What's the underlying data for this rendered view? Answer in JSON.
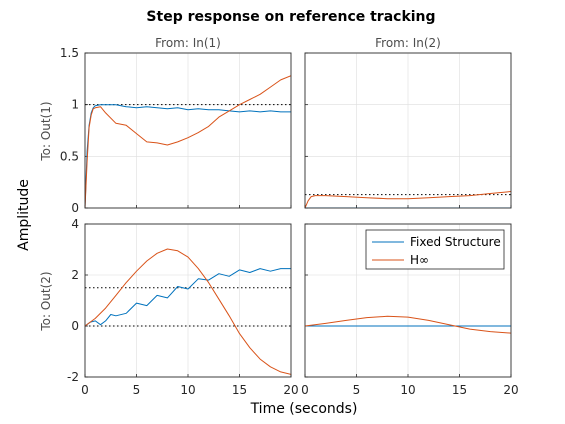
{
  "chart_data": {
    "type": "line",
    "title": "Step response on reference tracking",
    "xlabel": "Time (seconds)",
    "ylabel": "Amplitude",
    "grid": true,
    "legend": {
      "entries": [
        "Fixed Structure",
        "H∞"
      ],
      "placement": "top-right of bottom-right panel"
    },
    "colors": {
      "Fixed Structure": "#0072bd",
      "H∞": "#d95319"
    },
    "xlim": [
      0,
      20
    ],
    "xticks": [
      "0",
      "5",
      "10",
      "15",
      "20"
    ],
    "columns": [
      "From: In(1)",
      "From: In(2)"
    ],
    "rows": [
      "To: Out(1)",
      "To: Out(2)"
    ],
    "row_ylim": [
      [
        0,
        1.5
      ],
      [
        -2,
        4
      ]
    ],
    "row_yticks": [
      [
        "0",
        "0.5",
        "1",
        "1.5"
      ],
      [
        "-2",
        "0",
        "2",
        "4"
      ]
    ],
    "panels": [
      {
        "row": 0,
        "col": 0,
        "reference_lines": [
          1
        ],
        "series": [
          {
            "name": "Fixed Structure",
            "x": [
              0,
              0.2,
              0.4,
              0.6,
              0.8,
              1,
              1.5,
              2,
              3,
              4,
              5,
              6,
              7,
              8,
              9,
              10,
              11,
              12,
              13,
              14,
              15,
              16,
              17,
              18,
              19,
              20
            ],
            "y": [
              0,
              0.55,
              0.8,
              0.92,
              0.97,
              0.99,
              1.0,
              1.0,
              1.0,
              0.98,
              0.97,
              0.98,
              0.97,
              0.96,
              0.97,
              0.95,
              0.96,
              0.95,
              0.95,
              0.94,
              0.93,
              0.94,
              0.93,
              0.94,
              0.93,
              0.93
            ]
          },
          {
            "name": "H∞",
            "x": [
              0,
              0.2,
              0.4,
              0.6,
              0.8,
              1,
              1.5,
              2,
              3,
              4,
              5,
              6,
              7,
              8,
              9,
              10,
              11,
              12,
              13,
              14,
              15,
              16,
              17,
              18,
              19,
              20
            ],
            "y": [
              0,
              0.45,
              0.78,
              0.9,
              0.96,
              0.97,
              0.98,
              0.92,
              0.82,
              0.8,
              0.72,
              0.64,
              0.63,
              0.61,
              0.64,
              0.68,
              0.73,
              0.79,
              0.88,
              0.94,
              1.0,
              1.05,
              1.1,
              1.17,
              1.24,
              1.28
            ]
          }
        ]
      },
      {
        "row": 0,
        "col": 1,
        "reference_lines": [
          0.13
        ],
        "series": [
          {
            "name": "Fixed Structure",
            "x": [
              0,
              5,
              10,
              15,
              20
            ],
            "y": [
              0,
              0,
              0,
              0,
              0
            ]
          },
          {
            "name": "H∞",
            "x": [
              0,
              0.3,
              0.6,
              1,
              2,
              4,
              6,
              8,
              10,
              12,
              14,
              16,
              18,
              20
            ],
            "y": [
              0,
              0.07,
              0.11,
              0.12,
              0.12,
              0.11,
              0.1,
              0.09,
              0.09,
              0.1,
              0.11,
              0.12,
              0.14,
              0.16
            ]
          }
        ]
      },
      {
        "row": 1,
        "col": 0,
        "reference_lines": [
          0,
          1.5
        ],
        "series": [
          {
            "name": "Fixed Structure",
            "x": [
              0,
              0.5,
              1,
              1.5,
              2,
              2.5,
              3,
              4,
              5,
              6,
              7,
              8,
              9,
              10,
              11,
              12,
              13,
              14,
              15,
              16,
              17,
              18,
              19,
              20
            ],
            "y": [
              0,
              0.15,
              0.2,
              0.05,
              0.2,
              0.45,
              0.4,
              0.5,
              0.9,
              0.8,
              1.2,
              1.1,
              1.55,
              1.45,
              1.85,
              1.8,
              2.05,
              1.95,
              2.2,
              2.1,
              2.25,
              2.15,
              2.25,
              2.25
            ]
          },
          {
            "name": "H∞",
            "x": [
              0,
              1,
              2,
              3,
              4,
              5,
              6,
              7,
              8,
              9,
              10,
              11,
              12,
              13,
              14,
              15,
              16,
              17,
              18,
              19,
              20
            ],
            "y": [
              0,
              0.3,
              0.7,
              1.2,
              1.7,
              2.15,
              2.55,
              2.85,
              3.02,
              2.95,
              2.7,
              2.25,
              1.7,
              1.05,
              0.4,
              -0.3,
              -0.85,
              -1.3,
              -1.6,
              -1.8,
              -1.9
            ]
          }
        ]
      },
      {
        "row": 1,
        "col": 1,
        "reference_lines": [],
        "series": [
          {
            "name": "Fixed Structure",
            "x": [
              0,
              5,
              10,
              15,
              20
            ],
            "y": [
              0,
              0,
              0,
              0,
              0
            ]
          },
          {
            "name": "H∞",
            "x": [
              0,
              2,
              4,
              6,
              8,
              10,
              12,
              14,
              16,
              18,
              20
            ],
            "y": [
              0,
              0.1,
              0.22,
              0.33,
              0.38,
              0.35,
              0.22,
              0.05,
              -0.12,
              -0.22,
              -0.28
            ]
          }
        ]
      }
    ]
  }
}
